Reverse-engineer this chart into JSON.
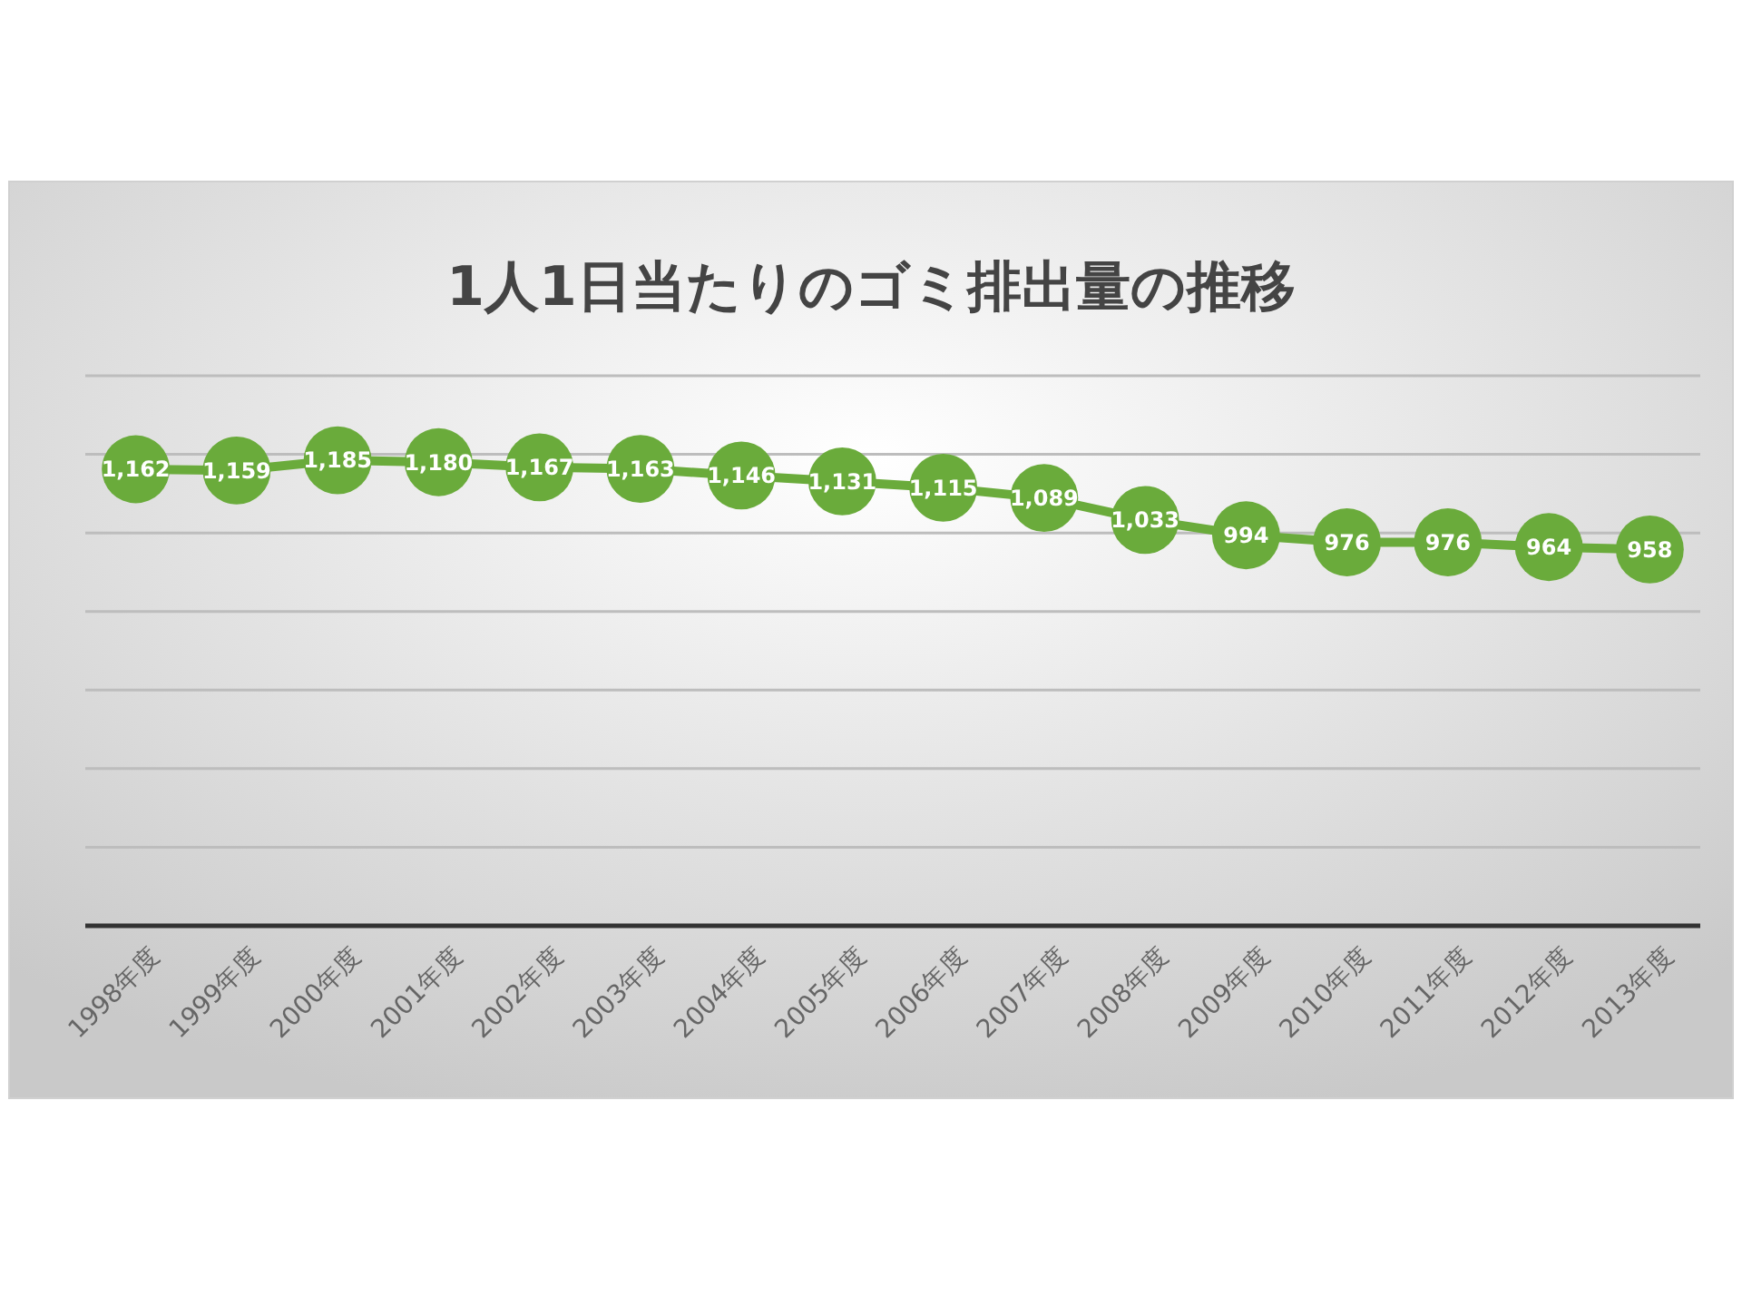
{
  "chart_data": {
    "type": "line",
    "title": "1人1日当たりのゴミ排出量の推移",
    "categories": [
      "1998年度",
      "1999年度",
      "2000年度",
      "2001年度",
      "2002年度",
      "2003年度",
      "2004年度",
      "2005年度",
      "2006年度",
      "2007年度",
      "2008年度",
      "2009年度",
      "2010年度",
      "2011年度",
      "2012年度",
      "2013年度"
    ],
    "series": [
      {
        "color": "#6aab3b",
        "values": [
          1162,
          1159,
          1185,
          1180,
          1167,
          1163,
          1146,
          1131,
          1115,
          1089,
          1033,
          994,
          976,
          976,
          964,
          958
        ],
        "value_labels": [
          "1,162",
          "1,159",
          "1,185",
          "1,180",
          "1,167",
          "1,163",
          "1,146",
          "1,131",
          "1,115",
          "1,089",
          "1,033",
          "994",
          "976",
          "976",
          "964",
          "958"
        ]
      }
    ],
    "ylim": [
      0,
      1400
    ],
    "yticks": [
      {
        "value": 0,
        "label": null
      },
      {
        "value": 200,
        "label": null
      },
      {
        "value": 400,
        "label": null
      },
      {
        "value": 600,
        "label": null
      },
      {
        "value": 800,
        "label": null
      },
      {
        "value": 1000,
        "label": null
      },
      {
        "value": 1200,
        "label": null
      },
      {
        "value": 1400,
        "label": null
      }
    ],
    "grid": "y",
    "tick_labels": "x",
    "marker": "circle"
  }
}
